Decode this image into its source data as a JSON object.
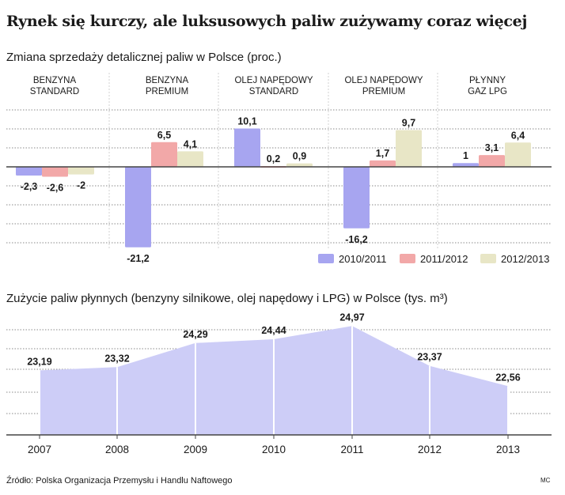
{
  "title": "Rynek się kurczy, ale luksusowych paliw zużywamy coraz więcej",
  "source": "Źródło: Polska Organizacja Przemysłu i Handlu Naftowego",
  "credit": "MC",
  "colors": {
    "series_2010_2011": "#a7a5f0",
    "series_2011_2012": "#f2a8a8",
    "series_2012_2013": "#e8e6c6",
    "area_fill": "#cdcdf7",
    "grid": "#8a8a8a",
    "axis": "#444444"
  },
  "chart_data": [
    {
      "type": "bar",
      "title": "Zmiana sprzedaży detalicznej paliw w Polsce (proc.)",
      "categories": [
        [
          "BENZYNA",
          "STANDARD"
        ],
        [
          "BENZYNA",
          "PREMIUM"
        ],
        [
          "OLEJ NAPĘDOWY",
          "STANDARD"
        ],
        [
          "OLEJ NAPĘDOWY",
          "PREMIUM"
        ],
        [
          "PŁYNNY",
          "GAZ LPG"
        ]
      ],
      "series": [
        {
          "name": "2010/2011",
          "values": [
            -2.3,
            -21.2,
            10.1,
            -16.2,
            1
          ],
          "labels": [
            "-2,3",
            "-21,2",
            "10,1",
            "-16,2",
            "1"
          ]
        },
        {
          "name": "2011/2012",
          "values": [
            -2.6,
            6.5,
            0.2,
            1.7,
            3.1
          ],
          "labels": [
            "-2,6",
            "6,5",
            "0,2",
            "1,7",
            "3,1"
          ]
        },
        {
          "name": "2012/2013",
          "values": [
            -2,
            4.1,
            0.9,
            9.7,
            6.4
          ],
          "labels": [
            "-2",
            "4,1",
            "0,9",
            "9,7",
            "6,4"
          ]
        }
      ],
      "ylim": [
        -20,
        15
      ],
      "grid": true,
      "legend": "bottom-right"
    },
    {
      "type": "area",
      "title": "Zużycie paliw płynnych (benzyny silnikowe, olej napędowy i LPG) w Polsce (tys. m³)",
      "x": [
        "2007",
        "2008",
        "2009",
        "2010",
        "2011",
        "2012",
        "2013"
      ],
      "values": [
        23.19,
        23.32,
        24.29,
        24.44,
        24.97,
        23.37,
        22.56
      ],
      "labels": [
        "23,19",
        "23,32",
        "24,29",
        "24,44",
        "24,97",
        "23,37",
        "22,56"
      ],
      "ylim": [
        20.6,
        25
      ],
      "grid": true
    }
  ]
}
